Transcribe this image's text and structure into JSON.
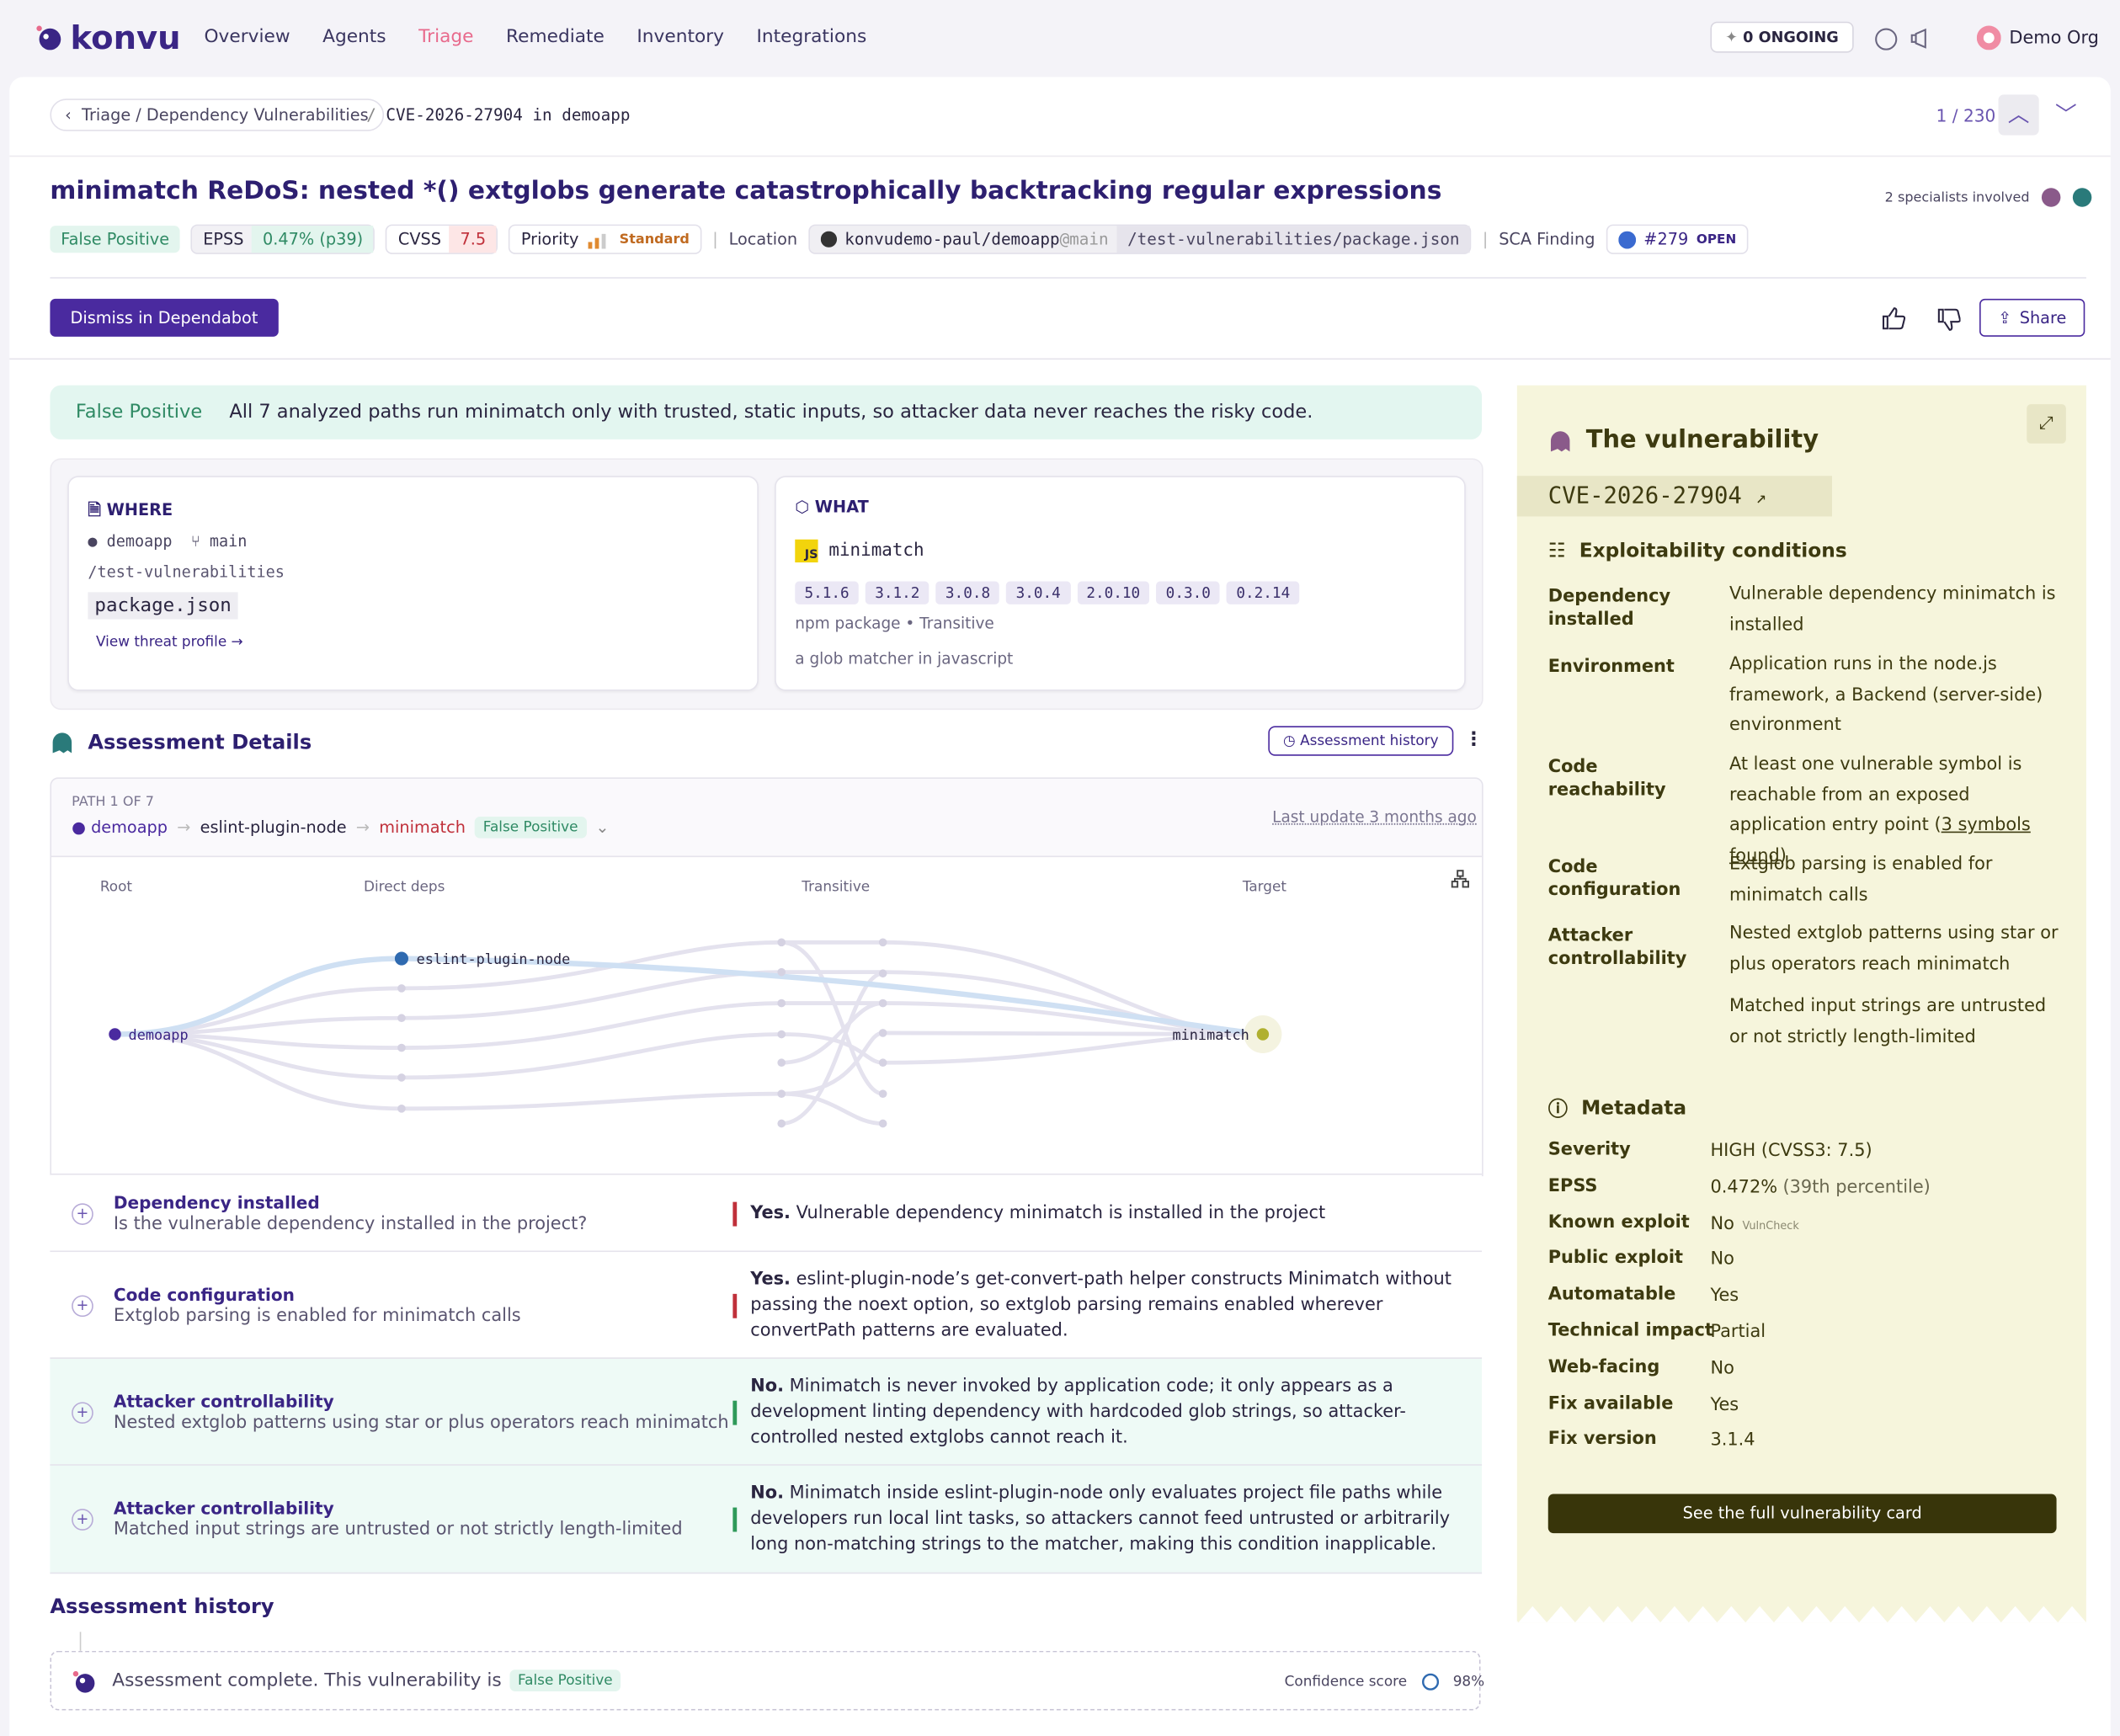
{
  "nav": {
    "logo": "konvu",
    "items": [
      "Overview",
      "Agents",
      "Triage",
      "Remediate",
      "Inventory",
      "Integrations"
    ],
    "ongoing_count": "0",
    "ongoing_label": "ONGOING",
    "org": "Demo Org"
  },
  "breadcrumb": {
    "parent": "Triage / Dependency Vulnerabilities",
    "current": "CVE-2026-27904 in demoapp",
    "pager": "1 / 230"
  },
  "header": {
    "title": "minimatch ReDoS: nested *() extglobs generate catastrophically backtracking regular expressions",
    "specialists": "2 specialists involved",
    "verdict": "False Positive",
    "epss_label": "EPSS",
    "epss_value": "0.47% (p39)",
    "cvss_label": "CVSS",
    "cvss_value": "7.5",
    "priority_label": "Priority",
    "priority_value": "Standard",
    "location_label": "Location",
    "repo": "konvudemo-paul/demoapp",
    "branch": "@main",
    "path": "/test-vulnerabilities/package.json",
    "sca_label": "SCA Finding",
    "pr": "#279",
    "pr_state": "OPEN"
  },
  "actions": {
    "dismiss": "Dismiss in Dependabot",
    "share": "Share"
  },
  "summary": {
    "verdict": "False Positive",
    "text": "All 7 analyzed paths run minimatch only with trusted, static inputs, so attacker data never reaches the risky code."
  },
  "where": {
    "label": "WHERE",
    "repo": "demoapp",
    "branch": "main",
    "path": "/test-vulnerabilities",
    "file": "package.json",
    "link": "View threat profile →"
  },
  "what": {
    "label": "WHAT",
    "package": "minimatch",
    "versions": [
      "5.1.6",
      "3.1.2",
      "3.0.8",
      "3.0.4",
      "2.0.10",
      "0.3.0",
      "0.2.14"
    ],
    "meta": "npm package • Transitive",
    "description": "a glob matcher in javascript"
  },
  "assessment": {
    "title": "Assessment Details",
    "history_button": "Assessment history",
    "path_label": "PATH 1 OF 7",
    "chain": [
      "demoapp",
      "eslint-plugin-node",
      "minimatch"
    ],
    "verdict": "False Positive",
    "last_update": "Last update 3 months ago",
    "graph_columns": [
      "Root",
      "Direct deps",
      "Transitive",
      "Target"
    ],
    "graph_nodes": [
      "demoapp",
      "eslint-plugin-node",
      "minimatch"
    ]
  },
  "conditions": [
    {
      "title": "Dependency installed",
      "question": "Is the vulnerable dependency installed in the project?",
      "lead": "Yes.",
      "answer": "Vulnerable dependency minimatch is installed in the project"
    },
    {
      "title": "Code configuration",
      "question": "Extglob parsing is enabled for minimatch calls",
      "lead": "Yes.",
      "answer": "eslint-plugin-node’s get-convert-path helper constructs Minimatch without passing the noext option, so extglob parsing remains enabled wherever convertPath patterns are evaluated."
    },
    {
      "title": "Attacker controllability",
      "question": "Nested extglob patterns using star or plus operators reach minimatch",
      "lead": "No.",
      "answer": "Minimatch is never invoked by application code; it only appears as a development linting dependency with hardcoded glob strings, so attacker-controlled nested extglobs cannot reach it."
    },
    {
      "title": "Attacker controllability",
      "question": "Matched input strings are untrusted or not strictly length-limited",
      "lead": "No.",
      "answer": "Minimatch inside eslint-plugin-node only evaluates project file paths while developers run local lint tasks, so attackers cannot feed untrusted or arbitrarily long non-matching strings to the matcher, making this condition inapplicable."
    }
  ],
  "history": {
    "title": "Assessment history",
    "text": "Assessment complete. This vulnerability is",
    "verdict": "False Positive",
    "confidence_label": "Confidence score",
    "confidence": "98%"
  },
  "sidebar": {
    "title": "The vulnerability",
    "cve": "CVE-2026-27904",
    "conditions_title": "Exploitability conditions",
    "conditions": [
      {
        "label": "Dependency installed",
        "text": "Vulnerable dependency minimatch is installed"
      },
      {
        "label": "Environment",
        "text": "Application runs in the node.js framework, a Backend (server-side) environment"
      },
      {
        "label": "Code reachability",
        "text": "At least one vulnerable symbol is reachable from an exposed application entry point (",
        "link": "3 symbols found",
        "tail": ")"
      },
      {
        "label": "Code configuration",
        "text": "Extglob parsing is enabled for minimatch calls"
      },
      {
        "label": "Attacker controllability",
        "text": "Nested extglob patterns using star or plus operators reach minimatch"
      },
      {
        "label": null,
        "text": "Matched input strings are untrusted or not strictly length-limited"
      }
    ],
    "metadata_title": "Metadata",
    "metadata": [
      {
        "label": "Severity",
        "value": "HIGH (CVSS3: 7.5)"
      },
      {
        "label": "EPSS",
        "value": "0.472%",
        "note": "(39th percentile)"
      },
      {
        "label": "Known exploit",
        "value": "No",
        "note": "VulnCheck"
      },
      {
        "label": "Public exploit",
        "value": "No"
      },
      {
        "label": "Automatable",
        "value": "Yes"
      },
      {
        "label": "Technical impact",
        "value": "Partial"
      },
      {
        "label": "Web-facing",
        "value": "No"
      },
      {
        "label": "Fix available",
        "value": "Yes"
      },
      {
        "label": "Fix version",
        "value": "3.1.4"
      }
    ],
    "button": "See the full vulnerability card"
  }
}
